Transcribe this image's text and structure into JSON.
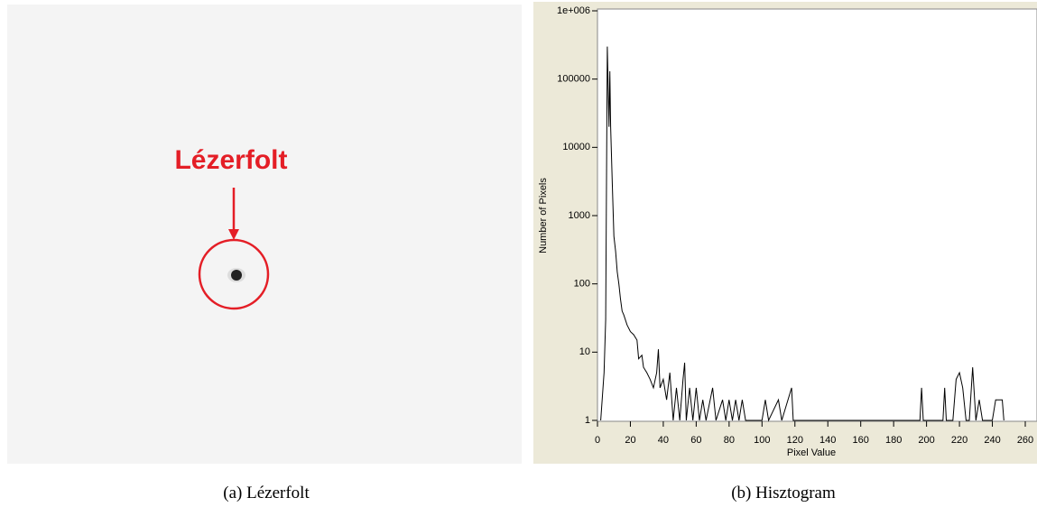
{
  "left_panel": {
    "annotation": "Lézerfolt",
    "caption": "(a) Lézerfolt"
  },
  "chart_data": {
    "type": "line",
    "caption": "(b) Hisztogram",
    "x_label": "Pixel Value",
    "y_label": "Number of Pixels",
    "log_y": true,
    "color": "#000000",
    "x": [
      2,
      4,
      5,
      6,
      7,
      7.5,
      8,
      9,
      10,
      11,
      12,
      13,
      14,
      15,
      16,
      18,
      20,
      22,
      24,
      25,
      27,
      28,
      30,
      32,
      34,
      36,
      37,
      38,
      40,
      42,
      44,
      46,
      48,
      50,
      52,
      53,
      54,
      56,
      58,
      60,
      62,
      64,
      66,
      70,
      72,
      76,
      78,
      80,
      82,
      84,
      86,
      88,
      90,
      100,
      102,
      104,
      110,
      112,
      118,
      119,
      196,
      197,
      198,
      210,
      211,
      212,
      216,
      218,
      220,
      222,
      224,
      226,
      228,
      230,
      232,
      234,
      240,
      242,
      246,
      247
    ],
    "values": [
      1,
      5,
      30,
      300000,
      20000,
      130000,
      20000,
      3000,
      500,
      300,
      150,
      100,
      60,
      40,
      35,
      25,
      20,
      18,
      15,
      8,
      9,
      6,
      5,
      4,
      3,
      5,
      11,
      3,
      4,
      2,
      5,
      1,
      3,
      1,
      4,
      7,
      1,
      3,
      1,
      3,
      1,
      2,
      1,
      3,
      1,
      2,
      1,
      2,
      1,
      2,
      1,
      2,
      1,
      1,
      2,
      1,
      2,
      1,
      3,
      1,
      1,
      3,
      1,
      1,
      3,
      1,
      1,
      4,
      5,
      3,
      1,
      1,
      6,
      1,
      2,
      1,
      1,
      2,
      2,
      1
    ],
    "xlim": [
      0,
      260
    ],
    "xticks": [
      0,
      20,
      40,
      60,
      80,
      100,
      120,
      140,
      160,
      180,
      200,
      220,
      240,
      260
    ],
    "ylim": [
      1,
      1000000
    ],
    "yticks": [
      1,
      10,
      100,
      1000,
      10000,
      100000,
      {
        "value": 1000000,
        "label": "1e+006"
      }
    ]
  }
}
